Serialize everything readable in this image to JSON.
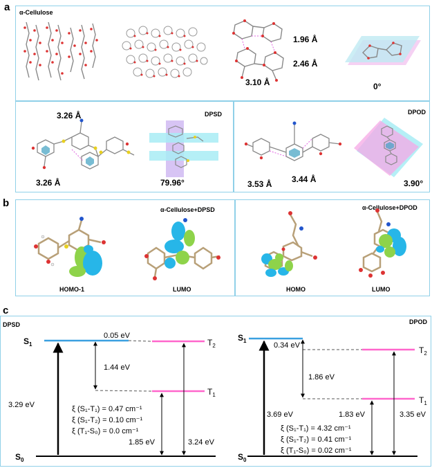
{
  "figure": {
    "panel_a": {
      "label": "a",
      "title": "α-Cellulose",
      "cellulose_measures": [
        "1.96 Å",
        "2.46 Å",
        "3.10 Å"
      ],
      "cellulose_angle": "0°",
      "dpsd": {
        "title": "DPSD",
        "measures": [
          "3.26 Å",
          "3.26 Å"
        ],
        "angle": "79.96°"
      },
      "dpod": {
        "title": "DPOD",
        "measures": [
          "3.53 Å",
          "3.44 Å"
        ],
        "angle": "3.90°"
      }
    },
    "panel_b": {
      "label": "b",
      "left_title": "α-Cellulose+DPSD",
      "right_title": "α-Cellulose+DPOD",
      "captions": [
        "HOMO-1",
        "LUMO",
        "HOMO",
        "LUMO"
      ]
    },
    "panel_c": {
      "label": "c",
      "left": {
        "title": "DPSD",
        "s1": "S",
        "s1_sub": "1",
        "s0": "S",
        "s0_sub": "0",
        "t1": "T",
        "t1_sub": "1",
        "t2": "T",
        "t2_sub": "2",
        "gap_s1_t2": "0.05 eV",
        "gap_s1_t1": "1.44 eV",
        "s0_s1": "3.29  eV",
        "s0_t1": "1.85  eV",
        "s0_t2": "3.24  eV",
        "xi1": "ξ (S₁-T₁) = 0.47 cm⁻¹",
        "xi2": "ξ (S₁-T₂) = 0.10 cm⁻¹",
        "xi3": "ξ (T₁-S₀) = 0.0 cm⁻¹"
      },
      "right": {
        "title": "DPOD",
        "s1": "S",
        "s1_sub": "1",
        "s0": "S",
        "s0_sub": "0",
        "t1": "T",
        "t1_sub": "1",
        "t2": "T",
        "t2_sub": "2",
        "gap_s1_t2": "0.34 eV",
        "gap_s1_t1": "1.86 eV",
        "s0_s1": "3.69  eV",
        "s0_t1": "1.83  eV",
        "s0_t2": "3.35  eV",
        "xi1": "ξ (S₁-T₁) = 4.32 cm⁻¹",
        "xi2": "ξ (S₁-T₂) = 0.41 cm⁻¹",
        "xi3": "ξ (T₁-S₀) = 0.02 cm⁻¹"
      }
    },
    "colors": {
      "singlet": "#3aa0e0",
      "triplet": "#ff66cc",
      "border": "#8fd0e8",
      "orbital_blue": "#27b6e8",
      "orbital_green": "#8ed34a"
    }
  }
}
